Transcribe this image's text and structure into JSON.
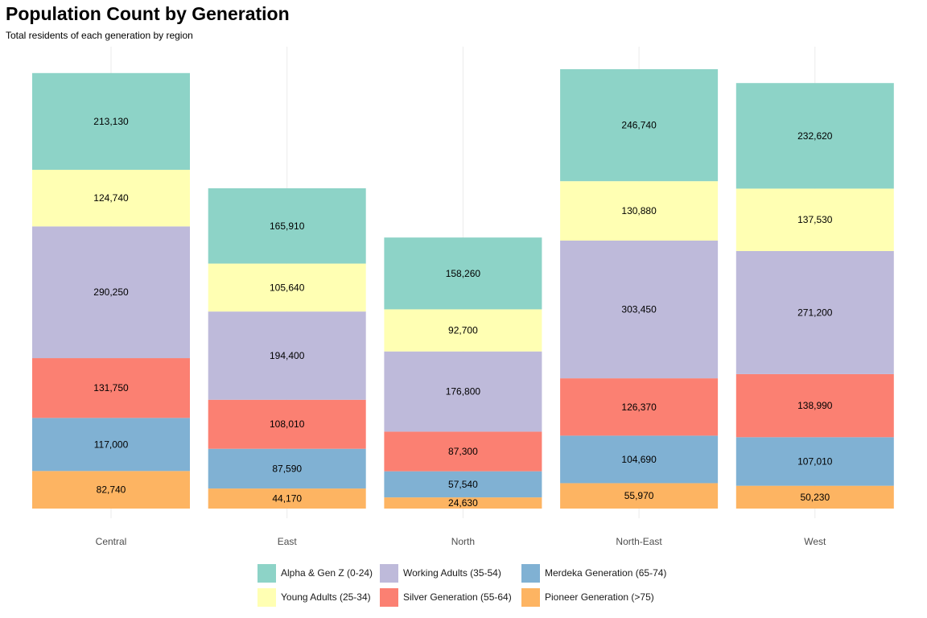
{
  "chart_data": {
    "type": "bar",
    "stacked": true,
    "title": "Population Count by Generation",
    "subtitle": "Total residents of each generation by region",
    "categories": [
      "Central",
      "East",
      "North",
      "North-East",
      "West"
    ],
    "series": [
      {
        "name": "Pioneer Generation (>75)",
        "color": "#FDB462",
        "values": [
          82740,
          44170,
          24630,
          55970,
          50230
        ]
      },
      {
        "name": "Merdeka Generation (65-74)",
        "color": "#80B1D3",
        "values": [
          117000,
          87590,
          57540,
          104690,
          107010
        ]
      },
      {
        "name": "Silver Generation (55-64)",
        "color": "#FB8072",
        "values": [
          131750,
          108010,
          87300,
          126370,
          138990
        ]
      },
      {
        "name": "Working Adults (35-54)",
        "color": "#BEBADA",
        "values": [
          290250,
          194400,
          176800,
          303450,
          271200
        ]
      },
      {
        "name": "Young Adults (25-34)",
        "color": "#FFFFB3",
        "values": [
          124740,
          105640,
          92700,
          130880,
          137530
        ]
      },
      {
        "name": "Alpha & Gen Z (0-24)",
        "color": "#8DD3C7",
        "values": [
          213130,
          165910,
          158260,
          246740,
          232620
        ]
      }
    ],
    "value_labels": true,
    "y_axis_shown": false,
    "grid": "vertical-major",
    "legend": "bottom"
  },
  "legend_order": [
    [
      "Alpha & Gen Z (0-24)",
      "#8DD3C7"
    ],
    [
      "Young Adults (25-34)",
      "#FFFFB3"
    ],
    [
      "Working Adults (35-54)",
      "#BEBADA"
    ],
    [
      "Silver Generation (55-64)",
      "#FB8072"
    ],
    [
      "Merdeka Generation (65-74)",
      "#80B1D3"
    ],
    [
      "Pioneer Generation (>75)",
      "#FDB462"
    ]
  ]
}
